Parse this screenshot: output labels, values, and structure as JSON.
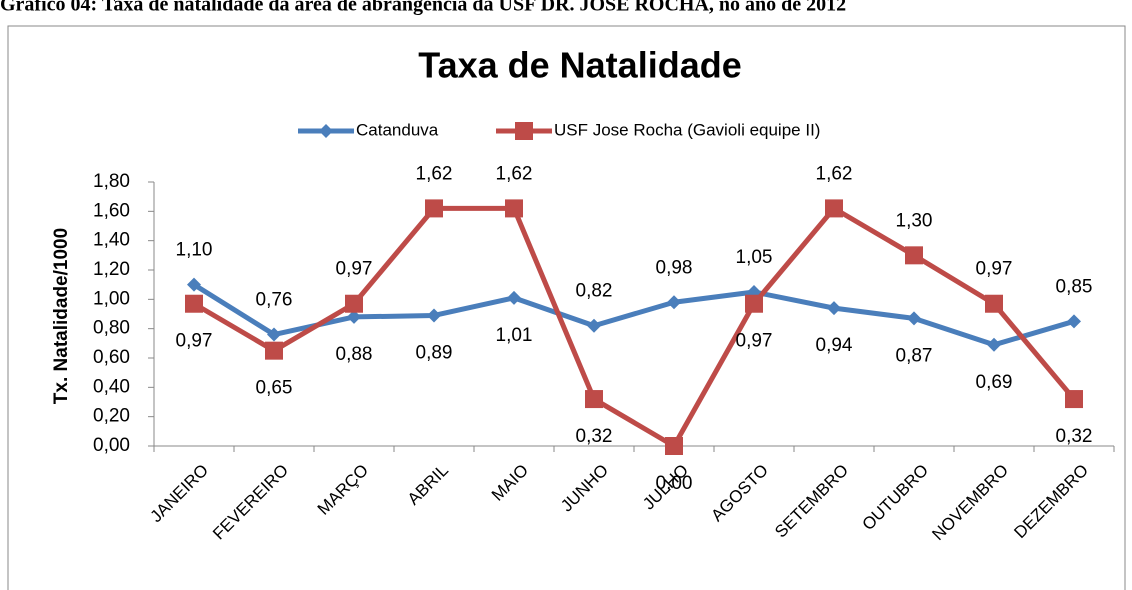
{
  "caption": "Gráfico 04: Taxa de natalidade da área de abrangência da USF DR. JOSÉ ROCHA, no ano de 2012",
  "chart_data": {
    "type": "line",
    "title": "Taxa de Natalidade",
    "y_label": "Tx. Natalidade/1000",
    "categories": [
      "JANEIRO",
      "FEVEREIRO",
      "MARÇO",
      "ABRIL",
      "MAIO",
      "JUNHO",
      "JULHO",
      "AGOSTO",
      "SETEMBRO",
      "OUTUBRO",
      "NOVEMBRO",
      "DEZEMBRO"
    ],
    "series": [
      {
        "name": "Catanduva",
        "color": "#4a7ebb",
        "marker": "diamond",
        "values": [
          1.1,
          0.76,
          0.88,
          0.89,
          1.01,
          0.82,
          0.98,
          1.05,
          0.94,
          0.87,
          0.69,
          0.85
        ],
        "value_labels": [
          "1,10",
          "0,76",
          "0,88",
          "0,89",
          "1,01",
          "0,82",
          "0,98",
          "1,05",
          "0,94",
          "0,87",
          "0,69",
          "0,85"
        ]
      },
      {
        "name": "USF Jose Rocha (Gavioli equipe II)",
        "color": "#be4b48",
        "marker": "square",
        "values": [
          0.97,
          0.65,
          0.97,
          1.62,
          1.62,
          0.32,
          0.0,
          0.97,
          1.62,
          1.3,
          0.97,
          0.32
        ],
        "value_labels": [
          "0,97",
          "0,65",
          "0,97",
          "1,62",
          "1,62",
          "0,32",
          "0,00",
          "0,97",
          "1,62",
          "1,30",
          "0,97",
          "0,32"
        ]
      }
    ],
    "ylim": [
      0,
      1.8
    ],
    "yticks": [
      {
        "value": 0,
        "label": "0,00"
      },
      {
        "value": 0.2,
        "label": "0,20"
      },
      {
        "value": 0.4,
        "label": "0,40"
      },
      {
        "value": 0.6,
        "label": "0,60"
      },
      {
        "value": 0.8,
        "label": "0,80"
      },
      {
        "value": 1.0,
        "label": "1,00"
      },
      {
        "value": 1.2,
        "label": "1,20"
      },
      {
        "value": 1.4,
        "label": "1,40"
      },
      {
        "value": 1.6,
        "label": "1,60"
      },
      {
        "value": 1.8,
        "label": "1,80"
      }
    ],
    "legend": "top"
  }
}
